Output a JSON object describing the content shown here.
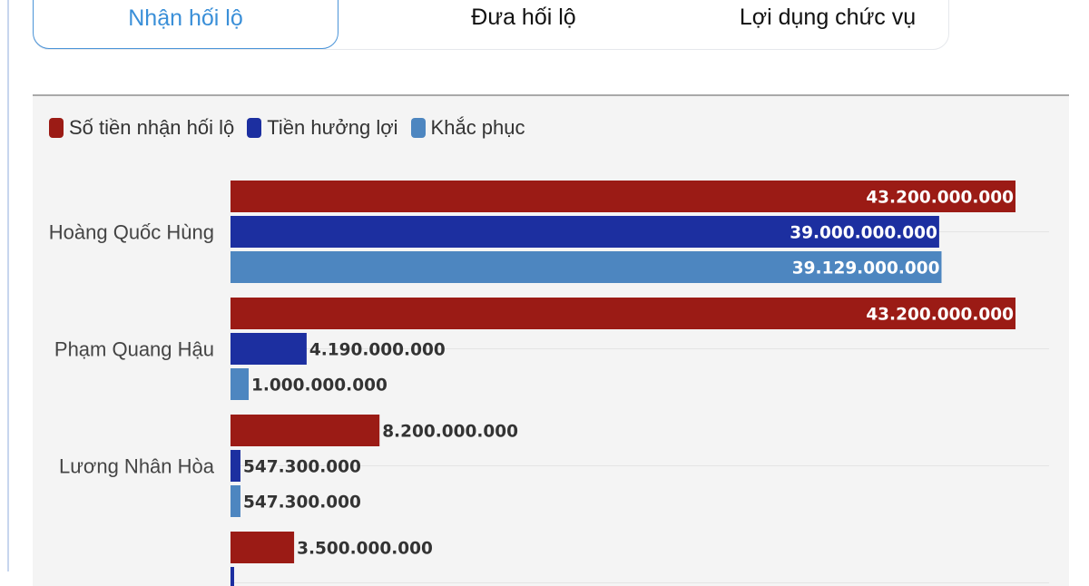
{
  "tabs": [
    {
      "label": "Nhận hối lộ",
      "active": true
    },
    {
      "label": "Đưa hối lộ",
      "active": false
    },
    {
      "label": "Lợi dụng chức vụ",
      "active": false
    }
  ],
  "colors": {
    "tab_active": "#3a8fd8",
    "panel_bg": "#f4f4f4"
  },
  "chart_data": {
    "type": "bar",
    "orientation": "horizontal",
    "legend_position": "top-left",
    "grid": true,
    "xlim": [
      0,
      43200000000
    ],
    "categories": [
      "Hoàng Quốc Hùng",
      "Phạm Quang Hậu",
      "Lương Nhân Hòa",
      ""
    ],
    "series": [
      {
        "name": "Số tiền nhận hối lộ",
        "color": "#9b1b15",
        "values": [
          43200000000,
          43200000000,
          8200000000,
          3500000000
        ],
        "labels": [
          "43.200.000.000",
          "43.200.000.000",
          "8.200.000.000",
          "3.500.000.000"
        ]
      },
      {
        "name": "Tiền hưởng lợi",
        "color": "#1c2fa0",
        "values": [
          39000000000,
          4190000000,
          547300000,
          200000000
        ],
        "labels": [
          "39.000.000.000",
          "4.190.000.000",
          "547.300.000",
          ""
        ]
      },
      {
        "name": "Khắc phục",
        "color": "#4d86c0",
        "values": [
          39129000000,
          1000000000,
          547300000,
          null
        ],
        "labels": [
          "39.129.000.000",
          "1.000.000.000",
          "547.300.000",
          ""
        ]
      }
    ]
  }
}
